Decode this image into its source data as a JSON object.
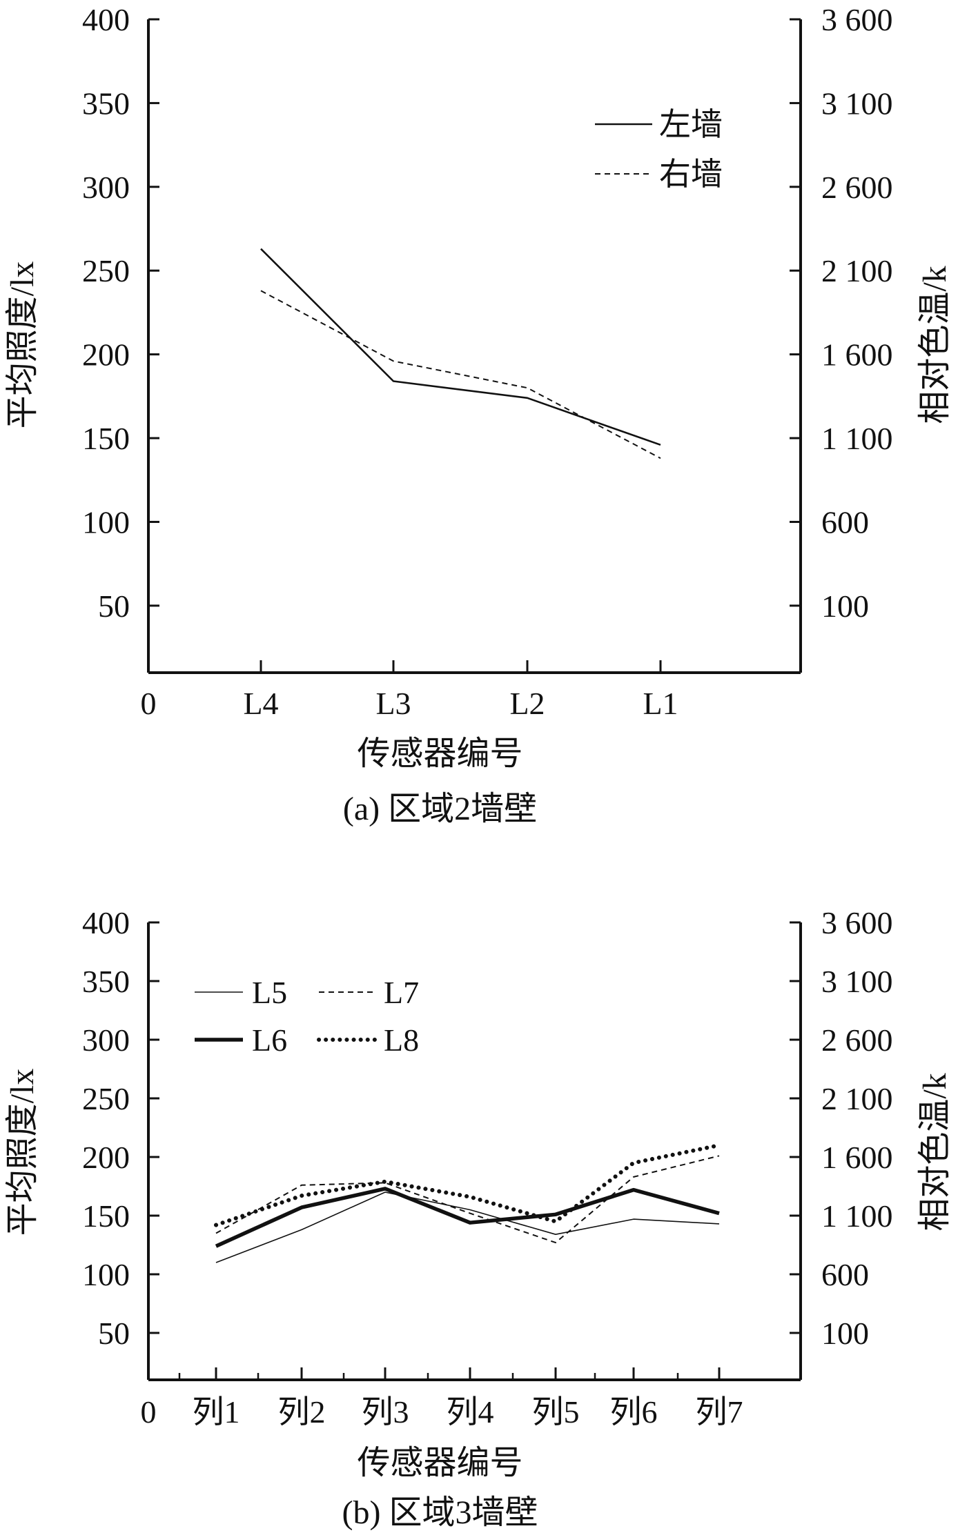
{
  "chart_data": [
    {
      "type": "line",
      "caption": "(a) 区域2墙壁",
      "xlabel": "传感器编号",
      "ylabel": "平均照度/lx",
      "ylabel_right": "相对色温/k",
      "x_origin_label": "0",
      "categories": [
        "L4",
        "L3",
        "L2",
        "L1"
      ],
      "ylim": [
        10,
        400
      ],
      "yticks": [
        50,
        100,
        150,
        200,
        250,
        300,
        350,
        400
      ],
      "y2ticks": [
        "100",
        "600",
        "1 100",
        "1 600",
        "2 100",
        "2 600",
        "3 100",
        "3 600"
      ],
      "legend_position": "top-right",
      "series": [
        {
          "name": "左墙",
          "style": "solid",
          "values": [
            263,
            184,
            174,
            146
          ]
        },
        {
          "name": "右墙",
          "style": "dashed",
          "values": [
            238,
            196,
            180,
            138
          ]
        }
      ]
    },
    {
      "type": "line",
      "caption": "(b) 区域3墙壁",
      "xlabel": "传感器编号",
      "ylabel": "平均照度/lx",
      "ylabel_right": "相对色温/k",
      "x_origin_label": "0",
      "categories": [
        "列1",
        "列2",
        "列3",
        "列4",
        "列5",
        "列6",
        "列7"
      ],
      "ylim": [
        10,
        400
      ],
      "yticks": [
        50,
        100,
        150,
        200,
        250,
        300,
        350,
        400
      ],
      "y2ticks": [
        "100",
        "600",
        "1 100",
        "1 600",
        "2 100",
        "2 600",
        "3 100",
        "3 600"
      ],
      "legend_position": "top-left",
      "series": [
        {
          "name": "L5",
          "style": "thin",
          "values": [
            110,
            138,
            170,
            155,
            134,
            147,
            143
          ]
        },
        {
          "name": "L6",
          "style": "thick",
          "values": [
            124,
            157,
            173,
            144,
            151,
            172,
            152
          ]
        },
        {
          "name": "L7",
          "style": "dashed",
          "values": [
            135,
            176,
            178,
            152,
            127,
            183,
            201
          ]
        },
        {
          "name": "L8",
          "style": "dotted",
          "values": [
            142,
            167,
            179,
            166,
            145,
            195,
            210
          ]
        }
      ]
    }
  ]
}
